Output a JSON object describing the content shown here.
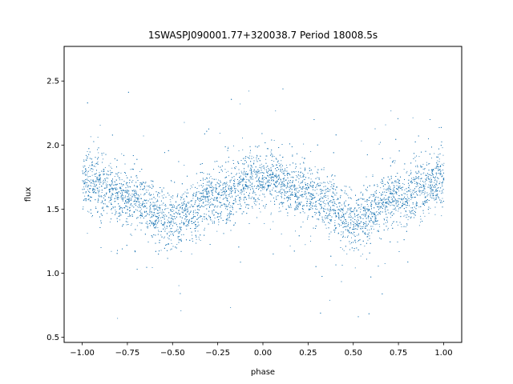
{
  "chart_data": {
    "type": "scatter",
    "title": "1SWASPJ090001.77+320038.7 Period 18008.5s",
    "xlabel": "phase",
    "ylabel": "flux",
    "xlim": [
      -1.1,
      1.1
    ],
    "ylim": [
      0.46,
      2.77
    ],
    "x_ticks": [
      -1.0,
      -0.75,
      -0.5,
      -0.25,
      0.0,
      0.25,
      0.5,
      0.75,
      1.0
    ],
    "x_tick_labels": [
      "−1.00",
      "−0.75",
      "−0.50",
      "−0.25",
      "0.00",
      "0.25",
      "0.50",
      "0.75",
      "1.00"
    ],
    "y_ticks": [
      0.5,
      1.0,
      1.5,
      2.0,
      2.5
    ],
    "y_tick_labels": [
      "0.5",
      "1.0",
      "1.5",
      "2.0",
      "2.5"
    ],
    "grid": false,
    "legend": "none",
    "marker_color": "#1f77b4",
    "series": [
      {
        "phase_range": [
          -1.0,
          1.0
        ],
        "flux_range": [
          0.55,
          2.67
        ],
        "trend": {
          "x": [
            -1.0,
            -0.75,
            -0.5,
            -0.25,
            0.0,
            0.25,
            0.5,
            0.75,
            1.0
          ],
          "y": [
            1.72,
            1.6,
            1.42,
            1.6,
            1.75,
            1.62,
            1.42,
            1.6,
            1.72
          ]
        }
      }
    ]
  }
}
